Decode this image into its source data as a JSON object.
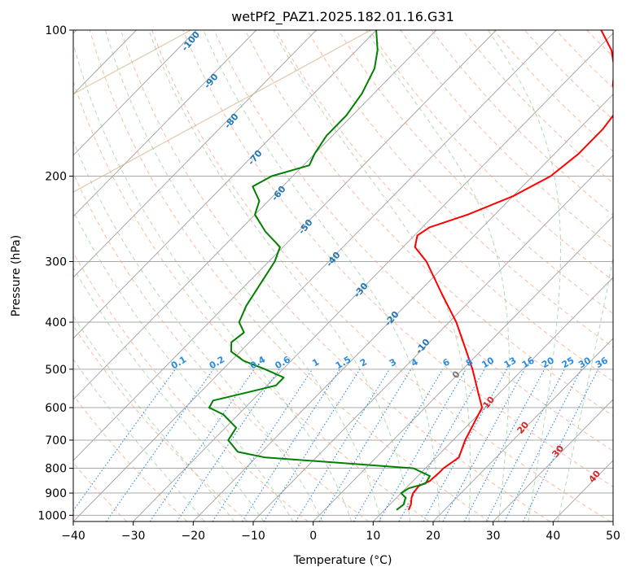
{
  "chart_data": {
    "type": "line",
    "subtype": "skew-t log-p diagram",
    "title": "wetPf2_PAZ1.2025.182.01.16.G31",
    "xlabel": "Temperature (°C)",
    "ylabel": "Pressure (hPa)",
    "xlim": [
      -40,
      50
    ],
    "ylim": [
      1030,
      100
    ],
    "y_scale": "log",
    "grid": true,
    "x_ticks": [
      -40,
      -30,
      -20,
      -10,
      0,
      10,
      20,
      30,
      40,
      50
    ],
    "x_tick_labels": [
      "−40",
      "−30",
      "−20",
      "−10",
      "0",
      "10",
      "20",
      "30",
      "40",
      "50"
    ],
    "y_ticks": [
      1000,
      900,
      800,
      700,
      600,
      500,
      400,
      300,
      200,
      100
    ],
    "y_tick_labels": [
      "1000",
      "900",
      "800",
      "700",
      "600",
      "500",
      "400",
      "300",
      "200",
      "100"
    ],
    "series": [
      {
        "color": "#ff0000",
        "points": [
          [
            975,
            14.0
          ],
          [
            950,
            13.5
          ],
          [
            920,
            12.5
          ],
          [
            900,
            12.0
          ],
          [
            870,
            11.8
          ],
          [
            850,
            12.8
          ],
          [
            820,
            13.0
          ],
          [
            800,
            13.0
          ],
          [
            760,
            13.8
          ],
          [
            700,
            12.0
          ],
          [
            650,
            10.8
          ],
          [
            600,
            9.5
          ],
          [
            560,
            6.5
          ],
          [
            500,
            1.6
          ],
          [
            450,
            -3.3
          ],
          [
            400,
            -8.8
          ],
          [
            350,
            -15.8
          ],
          [
            300,
            -23.7
          ],
          [
            280,
            -28.0
          ],
          [
            265,
            -29.5
          ],
          [
            255,
            -28.8
          ],
          [
            240,
            -24.5
          ],
          [
            220,
            -20.0
          ],
          [
            200,
            -17.0
          ],
          [
            180,
            -16.0
          ],
          [
            160,
            -16.0
          ],
          [
            150,
            -16.5
          ],
          [
            140,
            -18.0
          ],
          [
            130,
            -21.5
          ],
          [
            120,
            -24.0
          ],
          [
            110,
            -27.5
          ],
          [
            100,
            -32.5
          ]
        ]
      },
      {
        "color": "#008000",
        "points": [
          [
            975,
            12.0
          ],
          [
            950,
            12.3
          ],
          [
            920,
            11.5
          ],
          [
            900,
            10.0
          ],
          [
            880,
            10.5
          ],
          [
            860,
            12.5
          ],
          [
            830,
            12.0
          ],
          [
            800,
            8.0
          ],
          [
            780,
            -5.0
          ],
          [
            760,
            -18.5
          ],
          [
            740,
            -24.0
          ],
          [
            700,
            -27.5
          ],
          [
            660,
            -28.2
          ],
          [
            620,
            -32.5
          ],
          [
            600,
            -36.0
          ],
          [
            580,
            -36.5
          ],
          [
            560,
            -32.5
          ],
          [
            540,
            -28.5
          ],
          [
            520,
            -28.5
          ],
          [
            500,
            -33.0
          ],
          [
            480,
            -38.0
          ],
          [
            460,
            -41.5
          ],
          [
            440,
            -43.0
          ],
          [
            420,
            -42.5
          ],
          [
            400,
            -45.0
          ],
          [
            370,
            -46.5
          ],
          [
            340,
            -47.5
          ],
          [
            300,
            -49.0
          ],
          [
            280,
            -50.5
          ],
          [
            260,
            -55.5
          ],
          [
            240,
            -60.0
          ],
          [
            225,
            -61.5
          ],
          [
            210,
            -65.0
          ],
          [
            200,
            -63.5
          ],
          [
            190,
            -59.0
          ],
          [
            180,
            -60.0
          ],
          [
            165,
            -61.0
          ],
          [
            150,
            -61.0
          ],
          [
            135,
            -62.0
          ],
          [
            120,
            -64.0
          ],
          [
            110,
            -66.5
          ],
          [
            100,
            -70.0
          ]
        ]
      }
    ],
    "moist_adiabat_labels": [
      "-100",
      "-90",
      "-80",
      "-70",
      "-60",
      "-50",
      "-40",
      "-30",
      "-20",
      "-10",
      "0",
      "10",
      "20",
      "30",
      "40"
    ],
    "mixing_ratio_labels": [
      "0.1",
      "0.2",
      "0.4",
      "0.6",
      "1",
      "1.5",
      "2",
      "3",
      "4",
      "6",
      "8",
      "10",
      "13",
      "16",
      "20",
      "25",
      "30",
      "36"
    ],
    "colors": {
      "temperature": "#ff0000",
      "dewpoint": "#008000",
      "isotherms": "#aaaaaa",
      "isobars": "#aaaaaa",
      "dry_adiabats": "#f4a582",
      "moist_adiabats": "#7fbf7f",
      "mixing_ratio": "#1f77b4",
      "ghost_isotherms": "#d2b48c"
    }
  }
}
